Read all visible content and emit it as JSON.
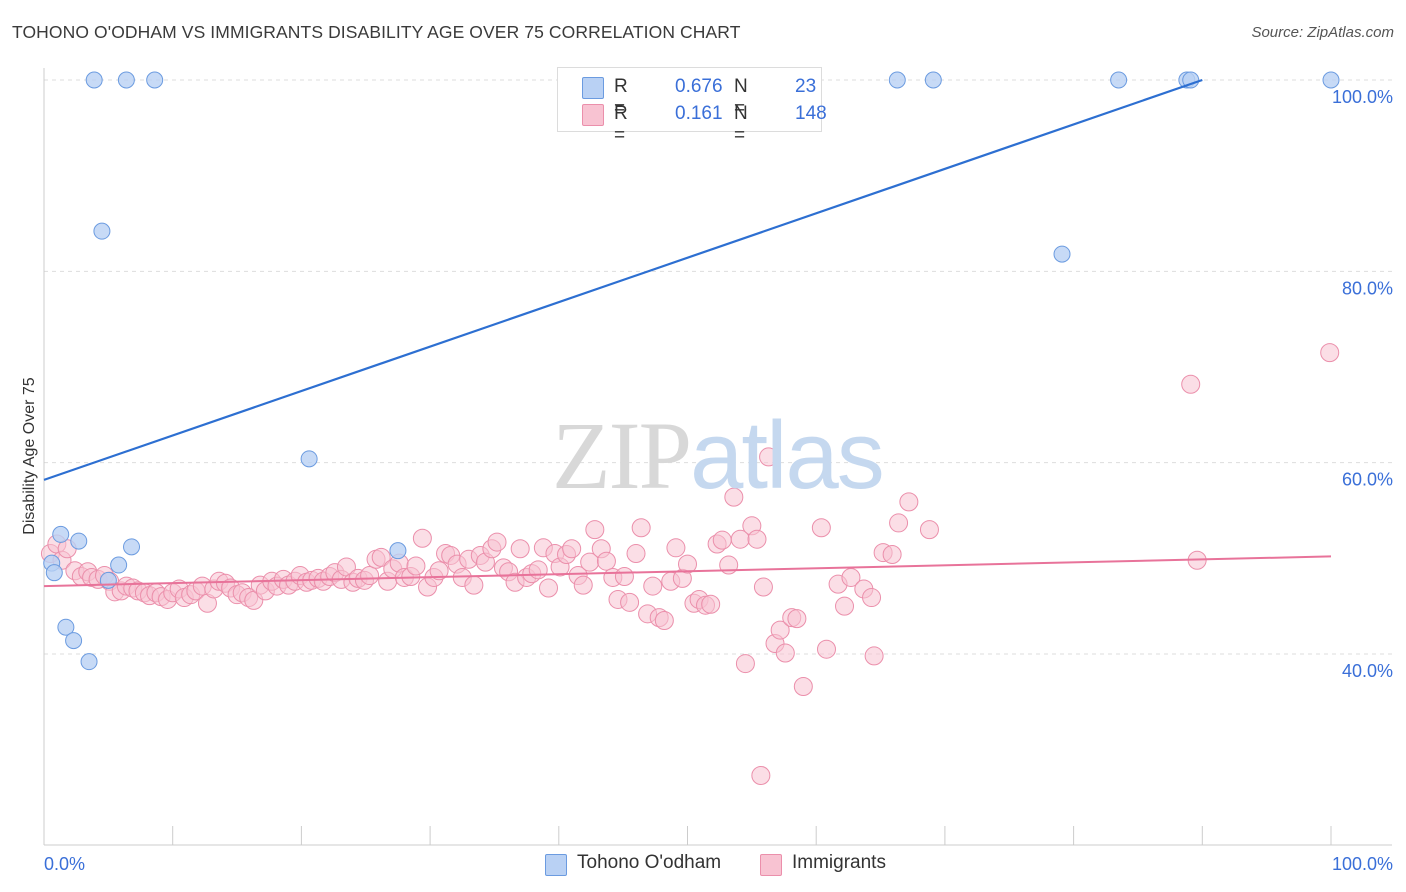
{
  "header": {
    "title": "TOHONO O'ODHAM VS IMMIGRANTS DISABILITY AGE OVER 75 CORRELATION CHART",
    "source": "Source: ZipAtlas.com"
  },
  "watermark": {
    "zip": "ZIP",
    "atlas": "atlas"
  },
  "legend": {
    "rows": [
      {
        "r_label": "R =",
        "r_value": "0.676",
        "n_label": "N =",
        "n_value": "23"
      },
      {
        "r_label": "R =",
        "r_value": "0.161",
        "n_label": "N =",
        "n_value": "148"
      }
    ]
  },
  "bottom_legend": {
    "series1": "Tohono O'odham",
    "series2": "Immigrants"
  },
  "chart_data": {
    "type": "scatter",
    "title": "TOHONO O'ODHAM VS IMMIGRANTS DISABILITY AGE OVER 75 CORRELATION CHART",
    "xlabel": "",
    "ylabel": "Disability Age Over 75",
    "xlim": [
      0,
      100
    ],
    "ylim": [
      20,
      102
    ],
    "x_tick_labels": [
      "0.0%",
      "100.0%"
    ],
    "y_ticks": [
      40,
      60,
      80,
      100
    ],
    "y_tick_labels": [
      "40.0%",
      "60.0%",
      "80.0%",
      "100.0%"
    ],
    "grid": true,
    "legend_position": "top-center",
    "colors": {
      "series1_fill": "#b9d1f4",
      "series1_stroke": "#6b9be0",
      "series1_line": "#2d6fd1",
      "series2_fill": "#f8c3d2",
      "series2_stroke": "#eb8fab",
      "series2_line": "#e8739a",
      "axis_text": "#3a6fd8",
      "grid": "#dddddd"
    },
    "series": [
      {
        "name": "Tohono O'odham",
        "r": 0.676,
        "n": 23,
        "trend": {
          "x": [
            0,
            90
          ],
          "y": [
            58.2,
            100
          ]
        },
        "points": [
          [
            0.6,
            49.5
          ],
          [
            0.8,
            48.5
          ],
          [
            1.3,
            52.5
          ],
          [
            2.7,
            51.8
          ],
          [
            1.7,
            42.8
          ],
          [
            2.3,
            41.4
          ],
          [
            3.5,
            39.2
          ],
          [
            5.0,
            47.7
          ],
          [
            5.8,
            49.3
          ],
          [
            6.8,
            51.2
          ],
          [
            4.5,
            84.2
          ],
          [
            20.6,
            60.4
          ],
          [
            27.5,
            50.8
          ],
          [
            3.9,
            100
          ],
          [
            6.4,
            100
          ],
          [
            8.6,
            100
          ],
          [
            66.3,
            100
          ],
          [
            69.1,
            100
          ],
          [
            83.5,
            100
          ],
          [
            88.8,
            100
          ],
          [
            89.1,
            100
          ],
          [
            100.0,
            100
          ],
          [
            79.1,
            81.8
          ]
        ]
      },
      {
        "name": "Immigrants",
        "r": 0.161,
        "n": 148,
        "trend": {
          "x": [
            0,
            100
          ],
          "y": [
            47.1,
            50.2
          ]
        },
        "points": [
          [
            0.5,
            50.5
          ],
          [
            1.0,
            51.5
          ],
          [
            1.4,
            49.8
          ],
          [
            1.8,
            51.0
          ],
          [
            2.4,
            48.7
          ],
          [
            2.9,
            48.1
          ],
          [
            3.4,
            48.6
          ],
          [
            3.7,
            48.0
          ],
          [
            4.2,
            47.8
          ],
          [
            4.7,
            48.2
          ],
          [
            5.1,
            47.6
          ],
          [
            5.5,
            46.5
          ],
          [
            6.0,
            46.6
          ],
          [
            6.4,
            47.1
          ],
          [
            6.9,
            46.9
          ],
          [
            7.3,
            46.6
          ],
          [
            7.8,
            46.4
          ],
          [
            8.2,
            46.1
          ],
          [
            8.7,
            46.4
          ],
          [
            9.1,
            46.0
          ],
          [
            9.6,
            45.7
          ],
          [
            10.0,
            46.4
          ],
          [
            10.5,
            46.8
          ],
          [
            10.9,
            45.9
          ],
          [
            11.4,
            46.2
          ],
          [
            11.8,
            46.6
          ],
          [
            12.3,
            47.1
          ],
          [
            12.7,
            45.3
          ],
          [
            13.2,
            46.8
          ],
          [
            13.6,
            47.6
          ],
          [
            14.1,
            47.4
          ],
          [
            14.5,
            46.9
          ],
          [
            15.0,
            46.2
          ],
          [
            15.4,
            46.4
          ],
          [
            15.9,
            45.9
          ],
          [
            16.3,
            45.6
          ],
          [
            16.8,
            47.2
          ],
          [
            17.2,
            46.6
          ],
          [
            17.7,
            47.6
          ],
          [
            18.1,
            47.1
          ],
          [
            18.6,
            47.8
          ],
          [
            19.0,
            47.2
          ],
          [
            19.5,
            47.6
          ],
          [
            19.9,
            48.2
          ],
          [
            20.4,
            47.5
          ],
          [
            20.8,
            47.7
          ],
          [
            21.3,
            47.9
          ],
          [
            21.7,
            47.6
          ],
          [
            22.2,
            48.1
          ],
          [
            22.6,
            48.5
          ],
          [
            23.1,
            47.8
          ],
          [
            23.5,
            49.1
          ],
          [
            24.0,
            47.5
          ],
          [
            24.4,
            47.9
          ],
          [
            24.9,
            47.7
          ],
          [
            25.3,
            48.2
          ],
          [
            25.8,
            49.9
          ],
          [
            26.2,
            50.1
          ],
          [
            26.7,
            47.6
          ],
          [
            27.1,
            48.9
          ],
          [
            27.6,
            49.5
          ],
          [
            28.0,
            48.0
          ],
          [
            28.5,
            48.1
          ],
          [
            28.9,
            49.2
          ],
          [
            29.4,
            52.1
          ],
          [
            29.8,
            47.0
          ],
          [
            30.3,
            48.0
          ],
          [
            30.7,
            48.7
          ],
          [
            31.2,
            50.5
          ],
          [
            31.6,
            50.3
          ],
          [
            32.1,
            49.4
          ],
          [
            32.5,
            48.0
          ],
          [
            33.0,
            49.9
          ],
          [
            33.4,
            47.2
          ],
          [
            33.9,
            50.3
          ],
          [
            34.3,
            49.6
          ],
          [
            34.8,
            51.0
          ],
          [
            35.2,
            51.7
          ],
          [
            35.7,
            49.0
          ],
          [
            36.1,
            48.6
          ],
          [
            36.6,
            47.5
          ],
          [
            37.0,
            51.0
          ],
          [
            37.5,
            48.0
          ],
          [
            37.9,
            48.4
          ],
          [
            38.4,
            48.8
          ],
          [
            38.8,
            51.1
          ],
          [
            39.2,
            46.9
          ],
          [
            39.7,
            50.5
          ],
          [
            40.1,
            49.1
          ],
          [
            40.6,
            50.4
          ],
          [
            41.0,
            51.0
          ],
          [
            41.5,
            48.2
          ],
          [
            41.9,
            47.2
          ],
          [
            42.4,
            49.6
          ],
          [
            42.8,
            53.0
          ],
          [
            43.3,
            51.0
          ],
          [
            43.7,
            49.7
          ],
          [
            44.2,
            48.0
          ],
          [
            44.6,
            45.7
          ],
          [
            45.1,
            48.1
          ],
          [
            45.5,
            45.4
          ],
          [
            46.0,
            50.5
          ],
          [
            46.4,
            53.2
          ],
          [
            46.9,
            44.2
          ],
          [
            47.3,
            47.1
          ],
          [
            47.8,
            43.8
          ],
          [
            48.2,
            43.5
          ],
          [
            48.7,
            47.6
          ],
          [
            49.1,
            51.1
          ],
          [
            49.6,
            47.9
          ],
          [
            50.0,
            49.4
          ],
          [
            50.5,
            45.3
          ],
          [
            50.9,
            45.7
          ],
          [
            51.4,
            45.1
          ],
          [
            51.8,
            45.2
          ],
          [
            52.3,
            51.5
          ],
          [
            52.7,
            51.9
          ],
          [
            53.2,
            49.3
          ],
          [
            53.6,
            56.4
          ],
          [
            54.1,
            52.0
          ],
          [
            54.5,
            39.0
          ],
          [
            55.0,
            53.4
          ],
          [
            55.4,
            52.0
          ],
          [
            55.9,
            47.0
          ],
          [
            56.3,
            60.6
          ],
          [
            56.8,
            41.1
          ],
          [
            57.2,
            42.5
          ],
          [
            57.6,
            40.1
          ],
          [
            58.1,
            43.8
          ],
          [
            58.5,
            43.7
          ],
          [
            59.0,
            36.6
          ],
          [
            60.4,
            53.2
          ],
          [
            60.8,
            40.5
          ],
          [
            61.7,
            47.3
          ],
          [
            62.2,
            45.0
          ],
          [
            62.7,
            48.0
          ],
          [
            63.7,
            46.8
          ],
          [
            64.3,
            45.9
          ],
          [
            64.5,
            39.8
          ],
          [
            65.2,
            50.6
          ],
          [
            66.4,
            53.7
          ],
          [
            67.2,
            55.9
          ],
          [
            68.8,
            53.0
          ],
          [
            65.9,
            50.4
          ],
          [
            55.7,
            27.3
          ],
          [
            89.1,
            68.2
          ],
          [
            89.6,
            49.8
          ],
          [
            99.9,
            71.5
          ]
        ]
      }
    ]
  }
}
